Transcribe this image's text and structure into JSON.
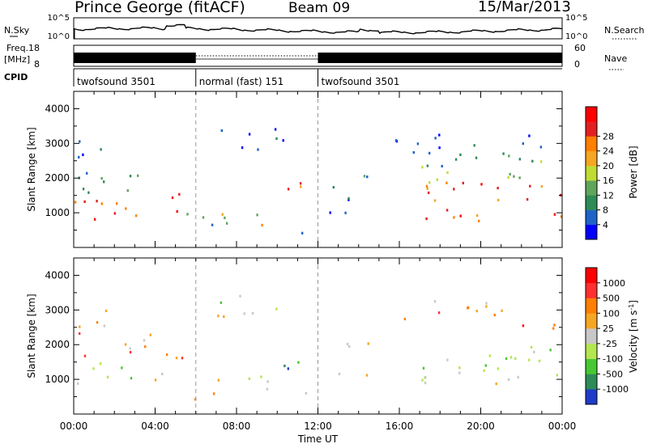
{
  "header": {
    "station": "Prince George (fitACF)",
    "beam": "Beam 09",
    "date": "15/Mar/2013"
  },
  "noise_panel": {
    "left_label": "N.Sky",
    "right_label": "N.Search",
    "left_ticks": [
      "10^5",
      "10^0"
    ],
    "right_ticks": [
      "10^5",
      "10^0"
    ]
  },
  "freq_panel": {
    "left_label_1": "Freq.",
    "left_label_2": "[MHz]",
    "right_label": "Nave",
    "left_ticks": [
      "18",
      "8"
    ],
    "right_ticks": [
      "60",
      "0"
    ]
  },
  "cpid": {
    "label": "CPID",
    "segments": [
      {
        "name": "twofsound 3501",
        "start": 0,
        "end": 6
      },
      {
        "name": "normal (fast) 151",
        "start": 6,
        "end": 12
      },
      {
        "name": "twofsound 3501",
        "start": 12,
        "end": 24
      }
    ]
  },
  "chart_data": [
    {
      "type": "heatmap",
      "panel": "power",
      "ylabel": "Slant Range [km]",
      "xlabel": "Time UT",
      "x_ticks": [
        "00:00",
        "04:00",
        "08:00",
        "12:00",
        "16:00",
        "20:00",
        "00:00"
      ],
      "xlim": [
        0,
        24
      ],
      "ylim": [
        0,
        4500
      ],
      "y_ticks": [
        1000,
        2000,
        3000,
        4000
      ],
      "colorbar": {
        "label": "Power [dB]",
        "ticks": [
          "4",
          "8",
          "12",
          "16",
          "20",
          "24",
          "28"
        ],
        "colors": [
          "#0000ff",
          "#1e64c8",
          "#2e8b57",
          "#5fa55a",
          "#c0dc32",
          "#f5a623",
          "#ff7f00",
          "#e32020",
          "#ff0000"
        ]
      },
      "regions": [
        {
          "t0": 0.0,
          "t1": 4.5,
          "r0": 800,
          "r1": 1500,
          "level": 0.8
        },
        {
          "t0": 0.0,
          "t1": 4.0,
          "r0": 1500,
          "r1": 2300,
          "level": 0.35
        },
        {
          "t0": 0.0,
          "t1": 2.5,
          "r0": 2500,
          "r1": 3100,
          "level": 0.15
        },
        {
          "t0": 4.5,
          "t1": 5.5,
          "r0": 800,
          "r1": 1900,
          "level": 0.85
        },
        {
          "t0": 5.5,
          "t1": 7.0,
          "r0": 300,
          "r1": 1000,
          "level": 0.25
        },
        {
          "t0": 7.0,
          "t1": 10.0,
          "r0": 600,
          "r1": 1200,
          "level": 0.55
        },
        {
          "t0": 7.0,
          "t1": 10.5,
          "r0": 2800,
          "r1": 3500,
          "level": 0.15
        },
        {
          "t0": 10.2,
          "t1": 11.4,
          "r0": 1300,
          "r1": 2100,
          "level": 0.7
        },
        {
          "t0": 11.0,
          "t1": 12.0,
          "r0": 300,
          "r1": 700,
          "level": 0.3
        },
        {
          "t0": 12.5,
          "t1": 14.5,
          "r0": 1000,
          "r1": 2200,
          "level": 0.2
        },
        {
          "t0": 17.0,
          "t1": 24.0,
          "r0": 800,
          "r1": 1900,
          "level": 0.75
        },
        {
          "t0": 17.0,
          "t1": 24.0,
          "r0": 1900,
          "r1": 2700,
          "level": 0.35
        },
        {
          "t0": 15.0,
          "t1": 23.0,
          "r0": 2700,
          "r1": 3300,
          "level": 0.1
        }
      ]
    },
    {
      "type": "heatmap",
      "panel": "velocity",
      "ylabel": "Slant Range [km]",
      "xlabel": "Time UT",
      "x_ticks": [
        "00:00",
        "04:00",
        "08:00",
        "12:00",
        "16:00",
        "20:00",
        "00:00"
      ],
      "xlim": [
        0,
        24
      ],
      "ylim": [
        0,
        4500
      ],
      "y_ticks": [
        1000,
        2000,
        3000,
        4000
      ],
      "colorbar": {
        "label": "Velocity [m s^-1]",
        "ticks": [
          "1000",
          "500",
          "100",
          "25",
          "-25",
          "-100",
          "-500",
          "-1000"
        ],
        "colors": [
          "#1e3cc8",
          "#2e8b57",
          "#46c832",
          "#b4e650",
          "#c8c8c8",
          "#f5a623",
          "#ff7f00",
          "#ff3030",
          "#ff0000"
        ]
      },
      "regions": [
        {
          "t0": 0.0,
          "t1": 4.5,
          "r0": 900,
          "r1": 1500,
          "level": 0.4
        },
        {
          "t0": 0.0,
          "t1": 4.0,
          "r0": 1700,
          "r1": 2400,
          "level": 0.65
        },
        {
          "t0": 0.0,
          "t1": 2.5,
          "r0": 2500,
          "r1": 3100,
          "level": 0.6
        },
        {
          "t0": 4.5,
          "t1": 5.5,
          "r0": 800,
          "r1": 1900,
          "level": 0.7
        },
        {
          "t0": 5.5,
          "t1": 7.0,
          "r0": 300,
          "r1": 700,
          "level": 0.65
        },
        {
          "t0": 7.0,
          "t1": 10.0,
          "r0": 600,
          "r1": 1200,
          "level": 0.45
        },
        {
          "t0": 7.0,
          "t1": 10.5,
          "r0": 2800,
          "r1": 3500,
          "level": 0.42
        },
        {
          "t0": 10.2,
          "t1": 11.4,
          "r0": 1300,
          "r1": 2100,
          "level": 0.15
        },
        {
          "t0": 11.0,
          "t1": 12.0,
          "r0": 300,
          "r1": 700,
          "level": 0.35
        },
        {
          "t0": 13.0,
          "t1": 14.5,
          "r0": 1000,
          "r1": 2200,
          "level": 0.6
        },
        {
          "t0": 17.0,
          "t1": 24.0,
          "r0": 900,
          "r1": 2100,
          "level": 0.42
        },
        {
          "t0": 22.0,
          "t1": 24.0,
          "r0": 2300,
          "r1": 2800,
          "level": 0.85
        },
        {
          "t0": 15.0,
          "t1": 21.0,
          "r0": 2700,
          "r1": 3300,
          "level": 0.65
        }
      ]
    }
  ]
}
